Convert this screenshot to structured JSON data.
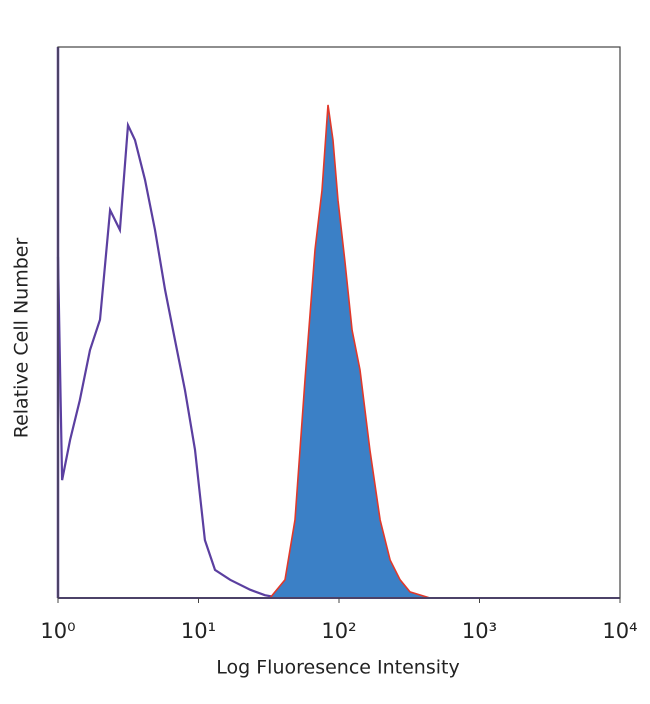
{
  "chart_data": {
    "type": "histogram-overlay",
    "x_label": "Log Fluoresence Intensity",
    "y_label": "Relative Cell Number",
    "xscale": "log",
    "xlim": [
      1,
      10000
    ],
    "ylim": [
      0,
      100
    ],
    "xticks": [
      {
        "value": 1,
        "label": "10⁰"
      },
      {
        "value": 10,
        "label": "10¹"
      },
      {
        "value": 100,
        "label": "10²"
      },
      {
        "value": 1000,
        "label": "10³"
      },
      {
        "value": 10000,
        "label": "10⁴"
      }
    ],
    "series": [
      {
        "style": "line",
        "color": "#5b3fa0",
        "x": [
          1,
          1.07,
          1.22,
          1.43,
          1.69,
          1.99,
          2.35,
          2.76,
          3.15,
          3.53,
          4.16,
          4.9,
          5.78,
          6.8,
          8.02,
          9.44,
          11.1,
          13.1,
          16.8,
          23.3,
          29.7,
          38
        ],
        "values": [
          61.9,
          21.4,
          28.7,
          35.9,
          45.0,
          50.5,
          70.4,
          66.8,
          85.8,
          83.1,
          75.9,
          66.8,
          55.9,
          46.8,
          37.7,
          26.9,
          10.5,
          5.1,
          3.3,
          1.5,
          0.5,
          0
        ]
      },
      {
        "style": "area",
        "color": "#3b80c6",
        "edge_color": "#e0392b",
        "x": [
          32.3,
          41.3,
          48.6,
          57.3,
          67.5,
          75.7,
          83.5,
          90.6,
          98.4,
          110,
          124,
          141,
          166,
          196,
          231,
          272,
          320,
          444
        ],
        "values": [
          0,
          3.3,
          14.2,
          39.6,
          63.2,
          74.0,
          89.5,
          83.1,
          72.2,
          61.3,
          48.6,
          41.4,
          26.9,
          14.2,
          6.9,
          3.3,
          1.1,
          0
        ]
      }
    ]
  }
}
